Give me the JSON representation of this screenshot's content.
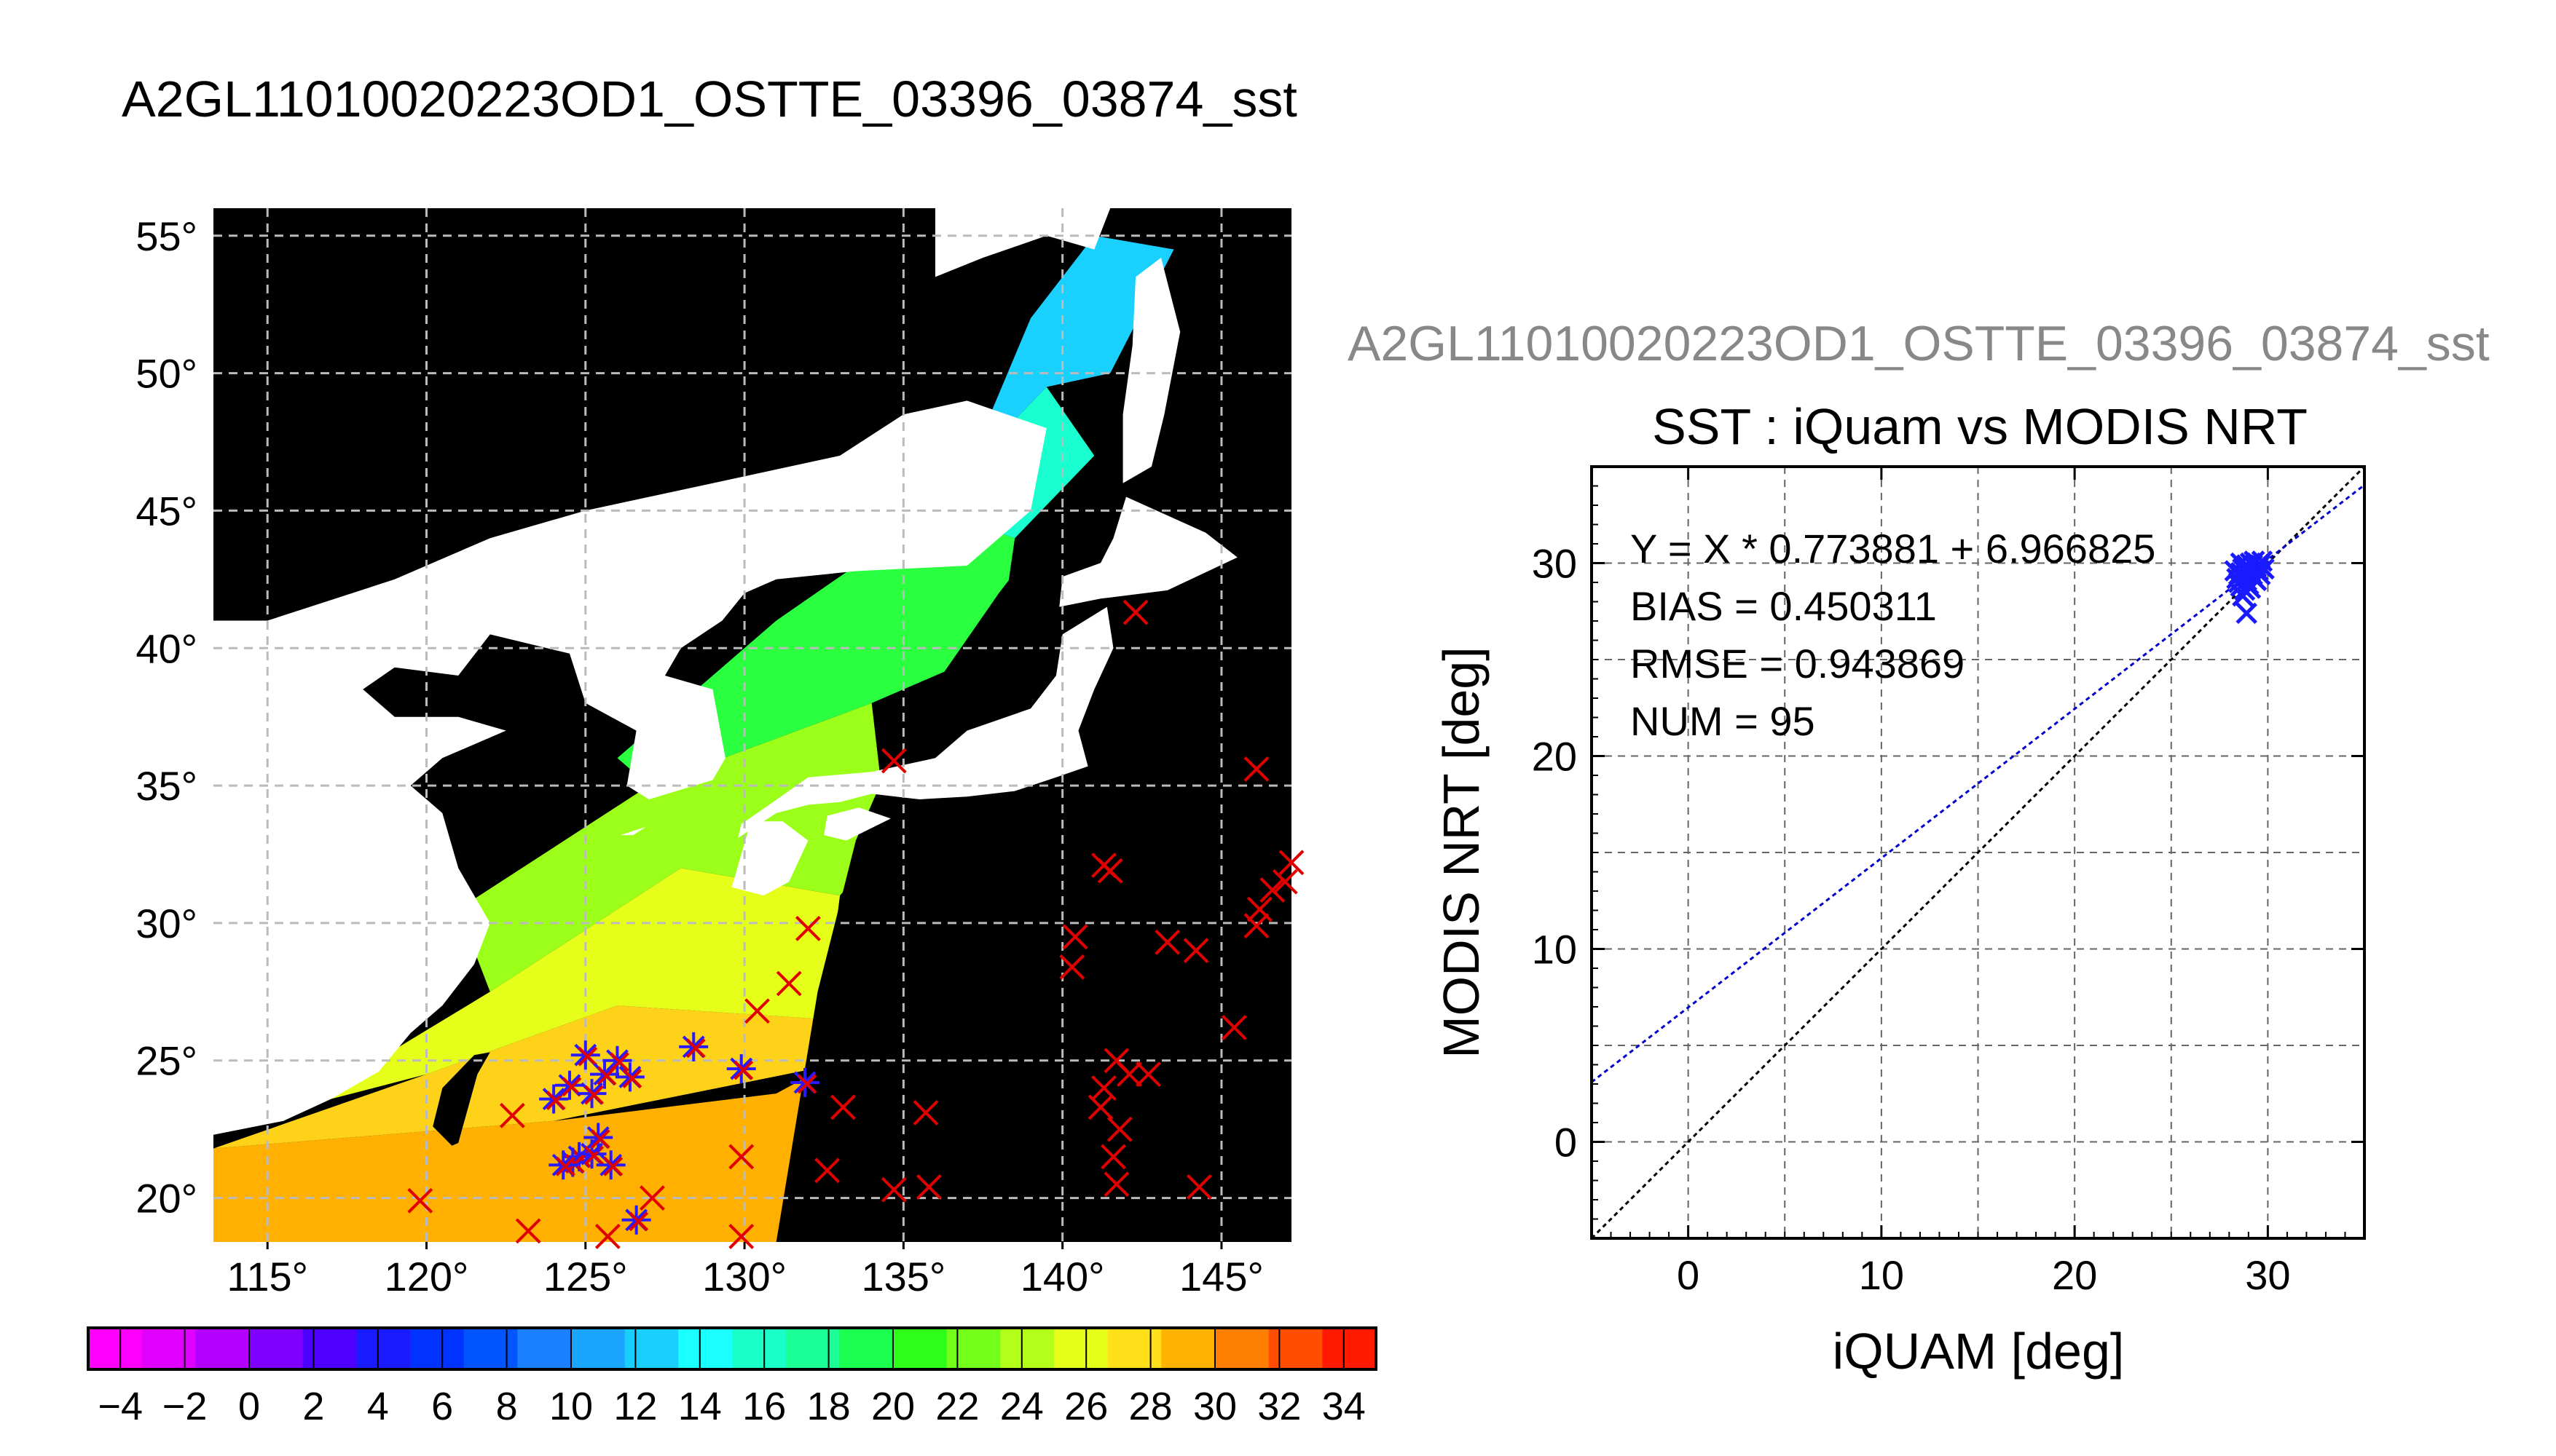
{
  "figure": {
    "main_title": "A2GL11010020223OD1_OSTTE_03396_03874_sst"
  },
  "chart_data": [
    {
      "type": "heatmap",
      "panel": "map",
      "lon_range": [
        113.3,
        147.2
      ],
      "lat_range": [
        18.4,
        56.0
      ],
      "x_ticks": [
        115,
        120,
        125,
        130,
        135,
        140,
        145
      ],
      "y_ticks": [
        20,
        25,
        30,
        35,
        40,
        45,
        50,
        55
      ],
      "grid": true,
      "colorbar": {
        "min": -5,
        "max": 35,
        "step": 2,
        "tick_values": [
          -4,
          -2,
          0,
          2,
          4,
          6,
          8,
          10,
          12,
          14,
          16,
          18,
          20,
          22,
          24,
          26,
          28,
          30,
          32,
          34
        ],
        "colors": [
          "#ff00ff",
          "#e000ff",
          "#b300ff",
          "#8000ff",
          "#4d00ff",
          "#1a1aff",
          "#0033ff",
          "#0055ff",
          "#1a80ff",
          "#1aa5ff",
          "#1acfff",
          "#1affff",
          "#1affc8",
          "#1aff96",
          "#1aff50",
          "#2eff1a",
          "#73ff1a",
          "#b3ff1a",
          "#e6ff1a",
          "#ffe01a",
          "#ffb300",
          "#ff8000",
          "#ff4d00",
          "#ff1a00"
        ]
      },
      "matched_points": [
        [
          124,
          23.6
        ],
        [
          124.5,
          24.1
        ],
        [
          125,
          25.2
        ],
        [
          125.6,
          24.5
        ],
        [
          126.4,
          24.4
        ],
        [
          126,
          25
        ],
        [
          125.2,
          23.8
        ],
        [
          124.8,
          21.5
        ],
        [
          124.6,
          21.3
        ],
        [
          125.2,
          21.6
        ],
        [
          125.8,
          21.2
        ],
        [
          125.4,
          22.2
        ],
        [
          126.6,
          19.2
        ],
        [
          128.4,
          25.5
        ],
        [
          129.9,
          24.7
        ],
        [
          131.9,
          24.2
        ],
        [
          124.3,
          21.2
        ]
      ],
      "x_points": [
        [
          142.3,
          41.3
        ],
        [
          134.7,
          35.9
        ],
        [
          146.1,
          35.6
        ],
        [
          141.3,
          32.1
        ],
        [
          141.5,
          31.9
        ],
        [
          132,
          29.8
        ],
        [
          140.4,
          29.5
        ],
        [
          140.3,
          28.4
        ],
        [
          143.3,
          29.3
        ],
        [
          144.2,
          29
        ],
        [
          146.2,
          30.5
        ],
        [
          146.6,
          31.2
        ],
        [
          147,
          31.5
        ],
        [
          146.1,
          29.9
        ],
        [
          147.2,
          32.2
        ],
        [
          131.4,
          27.8
        ],
        [
          130.4,
          26.8
        ],
        [
          145.4,
          26.2
        ],
        [
          141.7,
          25
        ],
        [
          142.1,
          24.5
        ],
        [
          142.7,
          24.5
        ],
        [
          141.3,
          24
        ],
        [
          141.2,
          23.3
        ],
        [
          141.8,
          22.5
        ],
        [
          141.6,
          21.5
        ],
        [
          135.7,
          23.1
        ],
        [
          133.1,
          23.3
        ],
        [
          122.7,
          23
        ],
        [
          132.6,
          21
        ],
        [
          129.9,
          21.5
        ],
        [
          141.7,
          20.5
        ],
        [
          144.3,
          20.4
        ],
        [
          134.7,
          20.3
        ],
        [
          135.8,
          20.4
        ],
        [
          127.1,
          20
        ],
        [
          119.8,
          19.9
        ],
        [
          123.2,
          18.8
        ],
        [
          125.7,
          18.6
        ],
        [
          129.9,
          18.6
        ]
      ]
    },
    {
      "type": "scatter",
      "panel": "scatter",
      "subtitle": "A2GL11010020223OD1_OSTTE_03396_03874_sst",
      "title": "SST : iQuam vs MODIS NRT",
      "xlabel": "iQUAM [deg]",
      "ylabel": "MODIS NRT [deg]",
      "xlim": [
        -5,
        35
      ],
      "ylim": [
        -5,
        35
      ],
      "x_ticks": [
        0,
        10,
        20,
        30
      ],
      "y_ticks": [
        0,
        10,
        20,
        30
      ],
      "grid": true,
      "stats": [
        "Y = X * 0.773881 + 6.966825",
        "BIAS = 0.450311",
        "RMSE = 0.943869",
        "NUM = 95"
      ],
      "fit": {
        "slope": 0.773881,
        "intercept": 6.966825,
        "color": "#0000cc"
      },
      "identity_line": {
        "color": "#000000"
      },
      "point_color": "#1a1aff",
      "points": [
        [
          28.4,
          29.2
        ],
        [
          28.6,
          29.5
        ],
        [
          28.8,
          29.3
        ],
        [
          29.0,
          29.6
        ],
        [
          29.2,
          29.4
        ],
        [
          29.4,
          29.8
        ],
        [
          29.6,
          29.9
        ],
        [
          28.5,
          29.0
        ],
        [
          28.7,
          29.7
        ],
        [
          28.9,
          29.9
        ],
        [
          29.1,
          30.0
        ],
        [
          29.3,
          29.2
        ],
        [
          29.5,
          29.6
        ],
        [
          29.7,
          30.1
        ],
        [
          28.6,
          28.8
        ],
        [
          28.8,
          28.6
        ],
        [
          29.0,
          28.9
        ],
        [
          28.7,
          28.3
        ],
        [
          28.9,
          27.4
        ],
        [
          28.5,
          29.4
        ],
        [
          29.2,
          29.9
        ],
        [
          29.8,
          29.7
        ],
        [
          28.3,
          29.6
        ],
        [
          29.4,
          29.1
        ],
        [
          28.6,
          30.0
        ],
        [
          29.6,
          29.4
        ],
        [
          28.9,
          29.1
        ],
        [
          29.1,
          28.7
        ],
        [
          28.8,
          29.8
        ],
        [
          29.3,
          30.1
        ]
      ]
    }
  ]
}
